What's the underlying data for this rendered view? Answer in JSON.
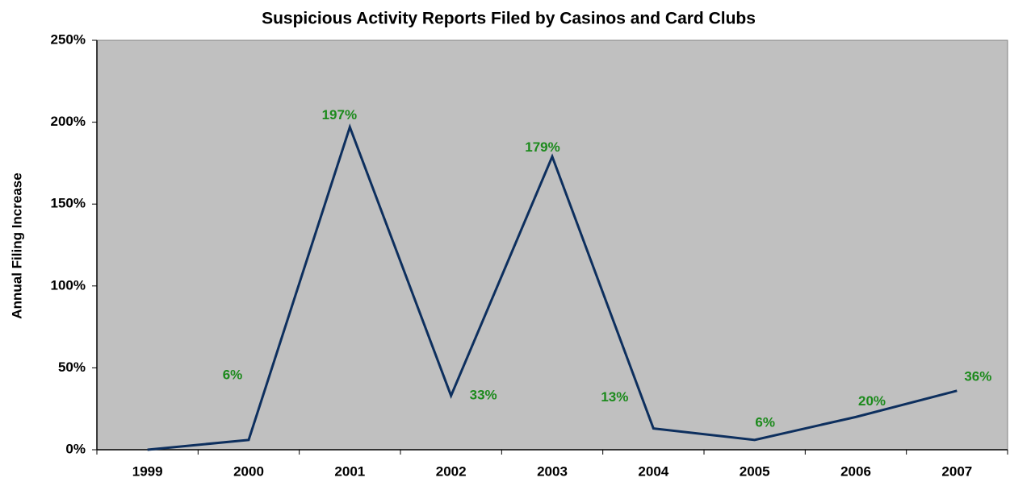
{
  "chart_data": {
    "type": "line",
    "title": "Suspicious Activity Reports Filed by Casinos and Card Clubs",
    "y_label": "Annual Filing Increase",
    "categories": [
      "1999",
      "2000",
      "2001",
      "2002",
      "2003",
      "2004",
      "2005",
      "2006",
      "2007"
    ],
    "values": [
      0,
      6,
      197,
      33,
      179,
      13,
      6,
      20,
      36
    ],
    "value_labels": [
      null,
      "6%",
      "197%",
      "33%",
      "179%",
      "13%",
      "6%",
      "20%",
      "36%"
    ],
    "color": "#0d2f5e",
    "label_color": "#1c8a1c",
    "ylim": [
      0,
      250
    ],
    "yticks": [
      {
        "value": 0,
        "label": "0%"
      },
      {
        "value": 50,
        "label": "50%"
      },
      {
        "value": 100,
        "label": "100%"
      },
      {
        "value": 150,
        "label": "150%"
      },
      {
        "value": 200,
        "label": "200%"
      },
      {
        "value": 250,
        "label": "250%"
      }
    ],
    "grid": false
  }
}
